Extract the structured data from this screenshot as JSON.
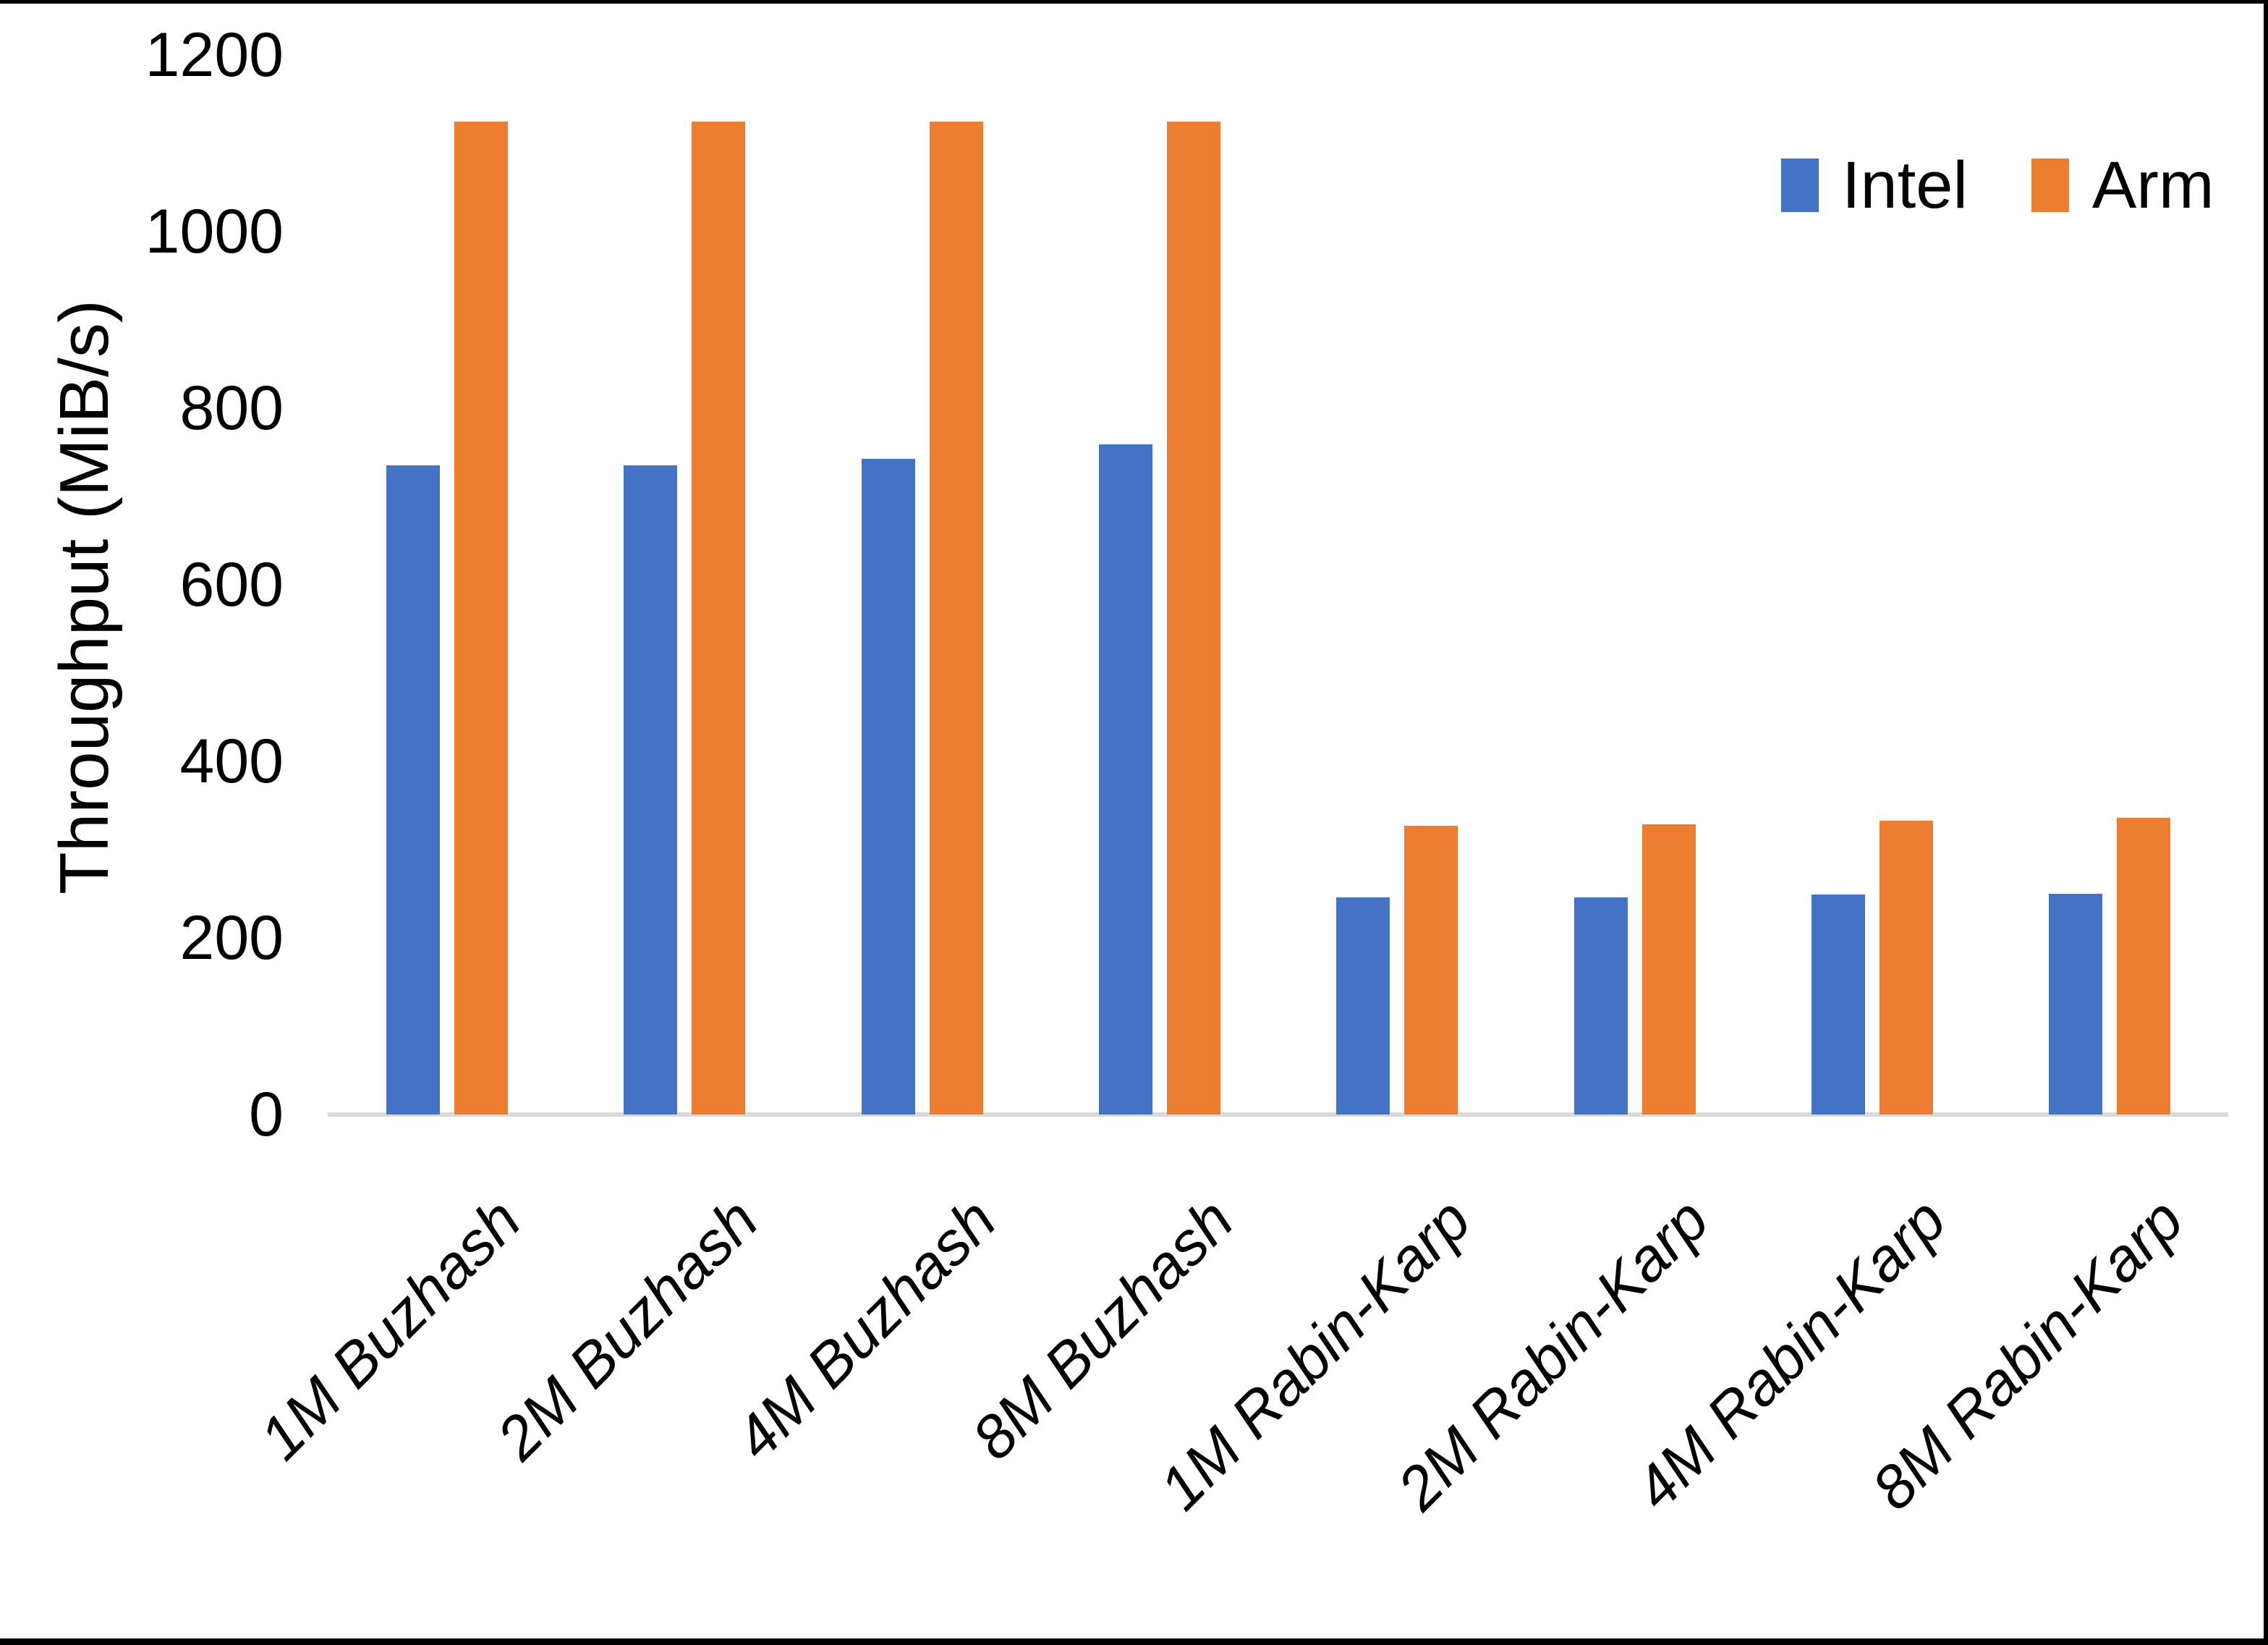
{
  "chart_data": {
    "type": "bar",
    "title": "",
    "categories": [
      "1M Buzhash",
      "2M Buzhash",
      "4M Buzhash",
      "8M Buzhash",
      "1M Rabin-Karp",
      "2M Rabin-Karp",
      "4M Rabin-Karp",
      "8M Rabin-Karp"
    ],
    "series": [
      {
        "name": "Intel",
        "color": "#4472C4",
        "values": [
          735,
          735,
          743,
          759,
          246,
          246,
          249,
          250
        ]
      },
      {
        "name": "Arm",
        "color": "#ED7D31",
        "values": [
          1125,
          1125,
          1125,
          1125,
          327,
          329,
          333,
          336
        ]
      }
    ],
    "xlabel": "",
    "ylabel": "Throughput (MiB/s)",
    "ylim": [
      0,
      1200
    ],
    "yticks": [
      1200,
      1000,
      800,
      600,
      400,
      200,
      0
    ],
    "grid": false,
    "legend_position": "top-right"
  },
  "legend_items": [
    {
      "label": "Intel",
      "color": "#4472C4"
    },
    {
      "label": "Arm",
      "color": "#ED7D31"
    }
  ],
  "colors": {
    "intel": "#4472C4",
    "arm": "#ED7D31",
    "axis_line": "#D9D9D9",
    "text": "#000000",
    "frame": "#000000"
  }
}
